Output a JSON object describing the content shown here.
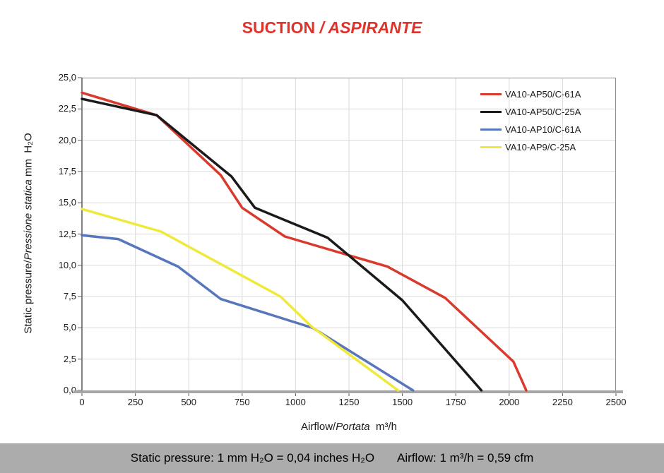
{
  "title": {
    "parts": [
      {
        "text": "SUCTION ",
        "italic": false
      },
      {
        "text": "/ ASPIRANTE",
        "italic": true
      }
    ],
    "color": "#df342b"
  },
  "chart_data": {
    "type": "line",
    "grid": true,
    "legend_position": "top-right-inside",
    "x_axis": {
      "label_parts": [
        {
          "text": "Airflow/",
          "italic": false
        },
        {
          "text": "Portata",
          "italic": true
        },
        {
          "text": "  m³/h",
          "italic": false
        }
      ],
      "min": 0,
      "max": 2500,
      "tick_step": 250,
      "tick_labels": [
        "0",
        "250",
        "500",
        "750",
        "1000",
        "1250",
        "1500",
        "1750",
        "2000",
        "2250",
        "2500"
      ]
    },
    "y_axis": {
      "label_parts": [
        {
          "text": "Static pressure/",
          "italic": false
        },
        {
          "text": "Pressione statica",
          "italic": true
        },
        {
          "text": " mm  H₂O",
          "italic": false
        }
      ],
      "min": 0,
      "max": 25,
      "tick_step": 2.5,
      "tick_labels": [
        "25,0",
        "22,5",
        "20,0",
        "17,5",
        "15,0",
        "12,5",
        "10,0",
        "7,5",
        "5,0",
        "2,5",
        "0,0"
      ]
    },
    "series": [
      {
        "name": "VA10-AP50/C-61A",
        "color": "#d93a2e",
        "points": [
          [
            0,
            23.8
          ],
          [
            350,
            22.0
          ],
          [
            650,
            17.2
          ],
          [
            750,
            14.6
          ],
          [
            950,
            12.3
          ],
          [
            1430,
            9.9
          ],
          [
            1700,
            7.4
          ],
          [
            2020,
            2.3
          ],
          [
            2080,
            0
          ]
        ]
      },
      {
        "name": "VA10-AP50/C-25A",
        "color": "#1a1a1a",
        "points": [
          [
            0,
            23.3
          ],
          [
            350,
            22.0
          ],
          [
            700,
            17.1
          ],
          [
            810,
            14.6
          ],
          [
            1150,
            12.2
          ],
          [
            1500,
            7.2
          ],
          [
            1870,
            0
          ]
        ]
      },
      {
        "name": "VA10-AP10/C-61A",
        "color": "#5876bc",
        "points": [
          [
            0,
            12.4
          ],
          [
            170,
            12.1
          ],
          [
            450,
            9.9
          ],
          [
            650,
            7.3
          ],
          [
            1080,
            5.0
          ],
          [
            1550,
            0
          ]
        ]
      },
      {
        "name": "VA10-AP9/C-25A",
        "color": "#efe93b",
        "points": [
          [
            0,
            14.5
          ],
          [
            370,
            12.7
          ],
          [
            930,
            7.5
          ],
          [
            1075,
            5.1
          ],
          [
            1480,
            0
          ]
        ]
      }
    ],
    "style": {
      "gridline_color": "#dadada",
      "border_color": "#8c8c8c",
      "y_axis_color": "#595959",
      "x_axis_color": "#a6a6a6",
      "line_width": 3.5
    }
  },
  "footer": {
    "left": "Static pressure: 1 mm H₂O = 0,04 inches H₂O",
    "right": "Airflow: 1 m³/h = 0,59 cfm",
    "background": "#acacac"
  }
}
